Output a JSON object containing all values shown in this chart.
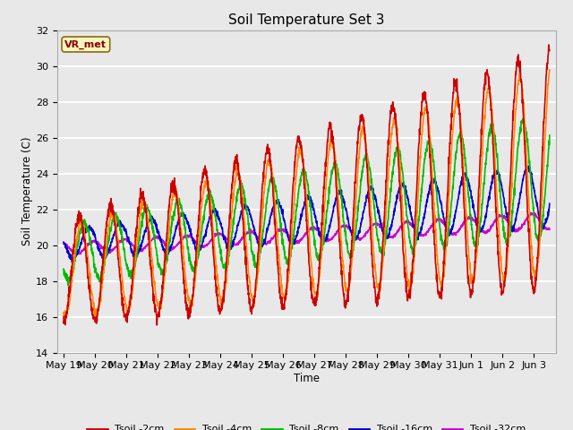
{
  "title": "Soil Temperature Set 3",
  "xlabel": "Time",
  "ylabel": "Soil Temperature (C)",
  "ylim": [
    14,
    32
  ],
  "background_color": "#e8e8e8",
  "plot_bg_color": "#e8e8e8",
  "grid_color": "#ffffff",
  "legend_label": "VR_met",
  "x_tick_labels": [
    "May 19",
    "May 20",
    "May 21",
    "May 22",
    "May 23",
    "May 24",
    "May 25",
    "May 26",
    "May 27",
    "May 28",
    "May 29",
    "May 30",
    "May 31",
    "Jun 1",
    "Jun 2",
    "Jun 3"
  ],
  "x_tick_positions": [
    0,
    1,
    2,
    3,
    4,
    5,
    6,
    7,
    8,
    9,
    10,
    11,
    12,
    13,
    14,
    15
  ],
  "y_ticks": [
    14,
    16,
    18,
    20,
    22,
    24,
    26,
    28,
    30,
    32
  ],
  "series": [
    {
      "name": "Tsoil -2cm",
      "color": "#cc0000"
    },
    {
      "name": "Tsoil -4cm",
      "color": "#ff8800"
    },
    {
      "name": "Tsoil -8cm",
      "color": "#00bb00"
    },
    {
      "name": "Tsoil -16cm",
      "color": "#0000cc"
    },
    {
      "name": "Tsoil -32cm",
      "color": "#cc00cc"
    }
  ]
}
